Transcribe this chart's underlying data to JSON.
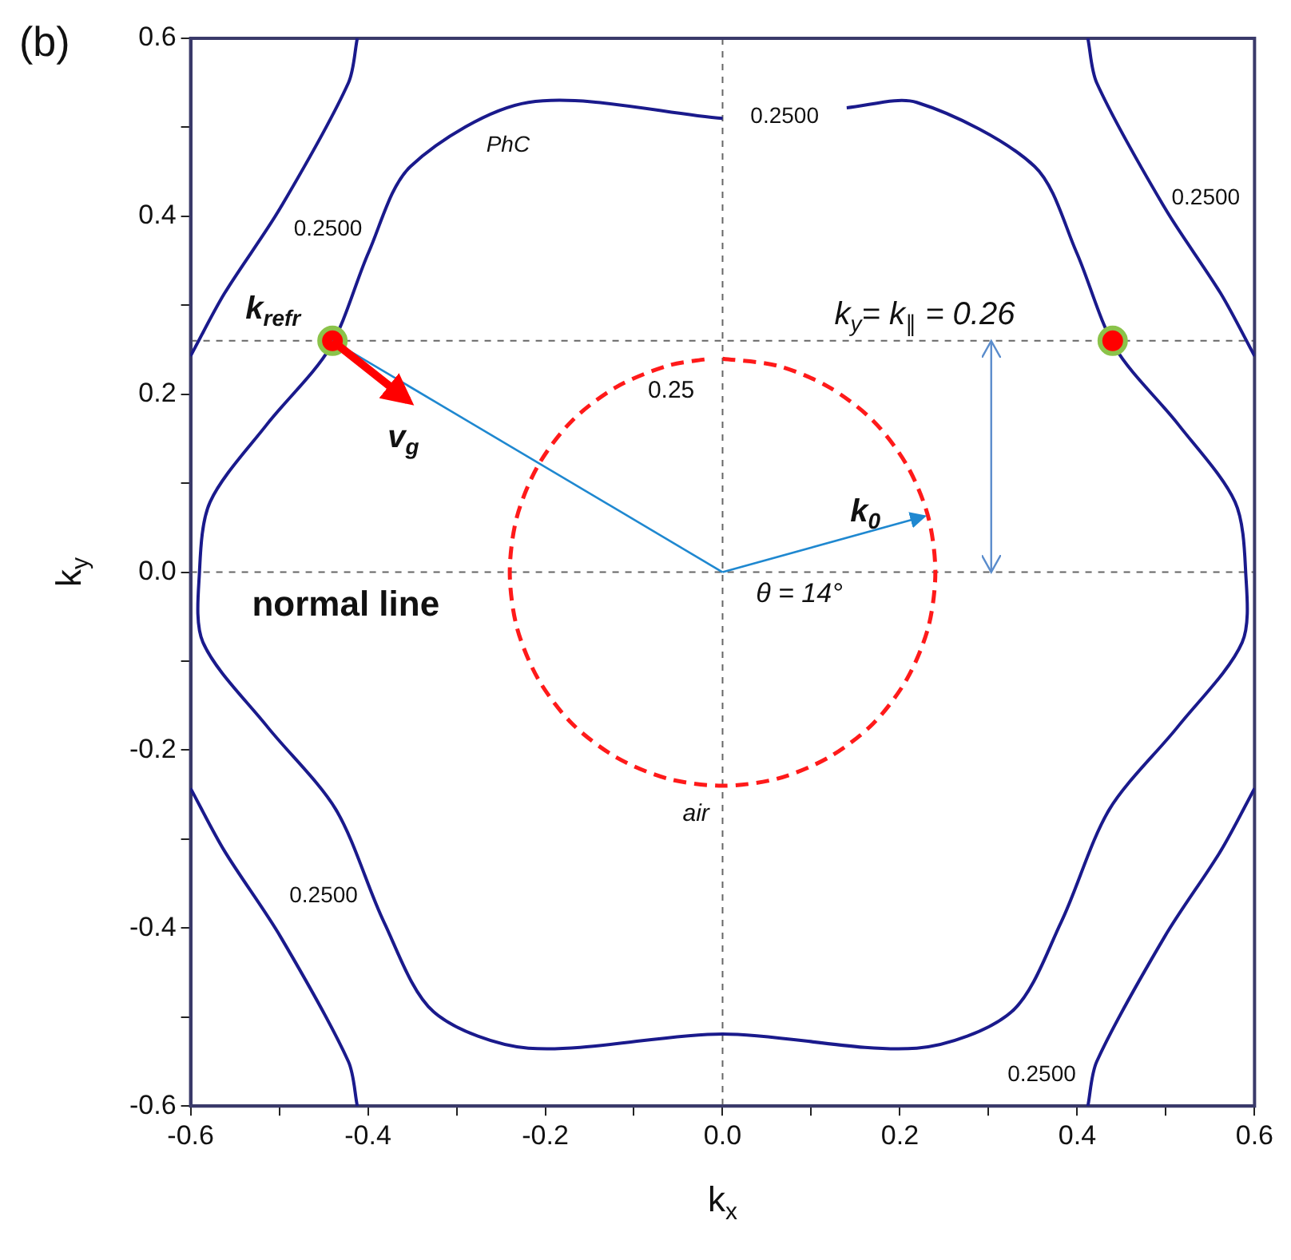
{
  "chart_data": {
    "type": "line",
    "title": "(b)",
    "xlabel": "k$_{x}$",
    "ylabel": "k$_{y}$",
    "xlim": [
      -0.6,
      0.6
    ],
    "ylim": [
      -0.6,
      0.6
    ],
    "xticks": [
      -0.6,
      {
        "value": -0.5,
        "label": null
      },
      -0.4,
      {
        "value": -0.3,
        "label": null
      },
      -0.2,
      {
        "value": -0.1,
        "label": null
      },
      {
        "value": 0,
        "label": "0.0"
      },
      {
        "value": 0.1,
        "label": null
      },
      0.2,
      {
        "value": 0.3,
        "label": null
      },
      0.4,
      {
        "value": 0.5,
        "label": null
      },
      0.6
    ],
    "yticks": [
      -0.6,
      {
        "value": -0.5,
        "label": null
      },
      -0.4,
      {
        "value": -0.3,
        "label": null
      },
      -0.2,
      {
        "value": -0.1,
        "label": null
      },
      {
        "value": 0,
        "label": "0.0"
      },
      {
        "value": 0.1,
        "label": null
      },
      0.2,
      {
        "value": 0.3,
        "label": null
      },
      0.4,
      {
        "value": 0.5,
        "label": null
      },
      0.6
    ],
    "grid": false,
    "legend": false,
    "marker": "none",
    "line_style": "solid",
    "series": [
      {
        "color": "#1a1a8c",
        "x": [
          0.14,
          0.219,
          0.352,
          0.399,
          0.443,
          0.514,
          0.578,
          0.59,
          0.586,
          0.514,
          0.436,
          0.382,
          0.326,
          0.219,
          0,
          -0.219,
          -0.326,
          -0.382,
          -0.436,
          -0.514,
          -0.586,
          -0.59,
          -0.578,
          -0.514,
          -0.443,
          -0.399,
          -0.352,
          -0.219,
          0
        ],
        "values": [
          0.522,
          0.528,
          0.456,
          0.36,
          0.252,
          0.166,
          0.079,
          0,
          -0.079,
          -0.173,
          -0.267,
          -0.393,
          -0.494,
          -0.535,
          -0.519,
          -0.535,
          -0.494,
          -0.393,
          -0.267,
          -0.173,
          -0.079,
          0,
          0.079,
          0.166,
          0.252,
          0.36,
          0.456,
          0.528,
          0.51
        ]
      },
      {
        "color": "#1a1a8c",
        "x": [
          -0.412,
          -0.422,
          -0.499,
          -0.562,
          -0.6
        ],
        "values": [
          0.6,
          0.55,
          0.409,
          0.313,
          0.243
        ]
      },
      {
        "color": "#1a1a8c",
        "x": [
          0.412,
          0.422,
          0.499,
          0.562,
          0.6
        ],
        "values": [
          0.6,
          0.55,
          0.409,
          0.313,
          0.243
        ]
      },
      {
        "color": "#1a1a8c",
        "x": [
          -0.412,
          -0.422,
          -0.499,
          -0.562,
          -0.6
        ],
        "values": [
          -0.6,
          -0.55,
          -0.409,
          -0.313,
          -0.243
        ]
      },
      {
        "color": "#1a1a8c",
        "x": [
          0.412,
          0.422,
          0.499,
          0.562,
          0.6
        ],
        "values": [
          -0.6,
          -0.55,
          -0.409,
          -0.313,
          -0.243
        ]
      },
      {
        "color": "#ff1a1a",
        "line_style": "dashed",
        "x": [
          0,
          0.062,
          0.12,
          0.17,
          0.208,
          0.232,
          0.24,
          0.232,
          0.208,
          0.17,
          0.12,
          0.062,
          0,
          -0.062,
          -0.12,
          -0.17,
          -0.208,
          -0.232,
          -0.24,
          -0.232,
          -0.208,
          -0.17,
          -0.12,
          -0.062,
          -0.015
        ],
        "values": [
          0.24,
          0.232,
          0.208,
          0.17,
          0.12,
          0.062,
          0,
          -0.062,
          -0.12,
          -0.17,
          -0.208,
          -0.232,
          -0.24,
          -0.232,
          -0.208,
          -0.17,
          -0.12,
          -0.062,
          0,
          0.062,
          0.12,
          0.17,
          0.208,
          0.232,
          0.24
        ]
      },
      {
        "type": "scatter",
        "color": "#ff0000",
        "marker": "circle",
        "x": [
          -0.44,
          0.44
        ],
        "values": [
          0.26,
          0.26
        ]
      }
    ],
    "ref_lines": [
      {
        "axis": "x",
        "value": 0
      },
      {
        "axis": "y",
        "value": 0
      },
      {
        "axis": "y",
        "value": 0.26,
        "label": "k$_{y}$= k$_{∥}$ = 0.26"
      }
    ],
    "annotations": [
      "PhC",
      "0.2500",
      "0.2500",
      "0.2500",
      "0.2500",
      "0.2500",
      "0.25",
      "air",
      "k$_{refr}$",
      "v$_{g}$",
      "k$_{0}$",
      {
        "text": "θ = 14°",
        "x": 0,
        "y": 0
      },
      "normal line"
    ]
  }
}
